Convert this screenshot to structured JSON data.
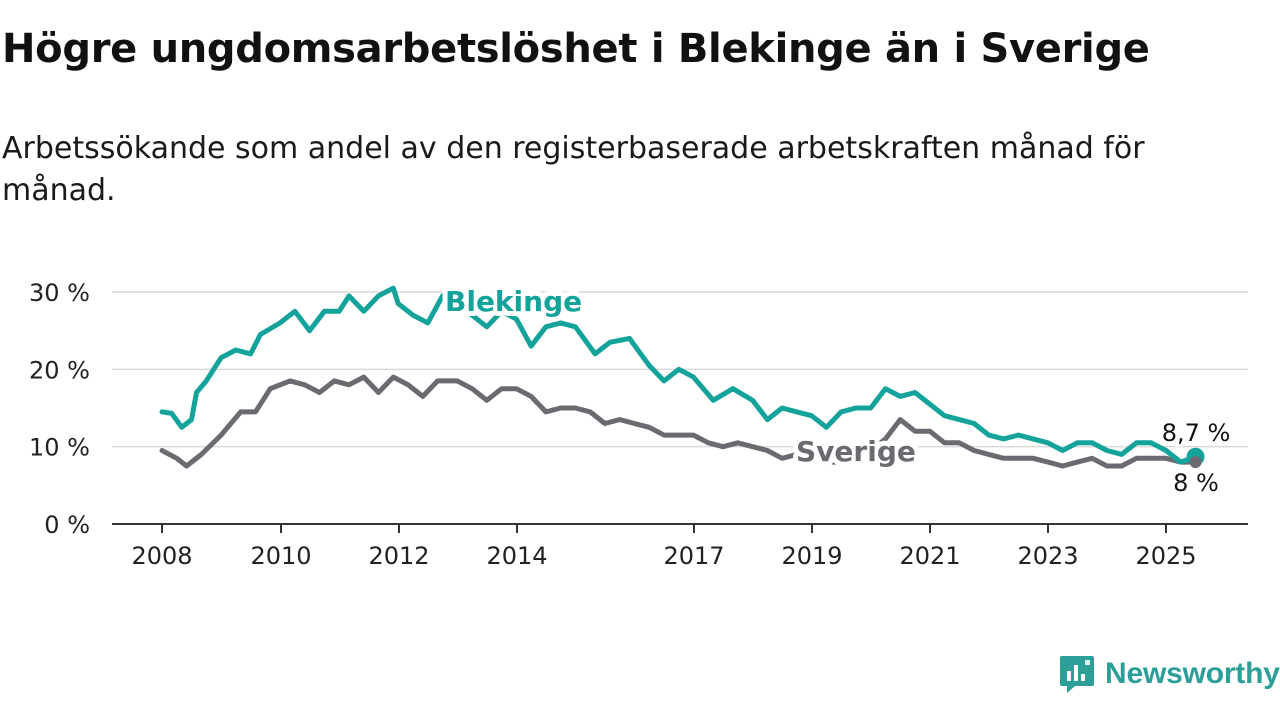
{
  "title": "Högre ungdomsarbetslöshet i Blekinge än i Sverige",
  "subtitle": "Arbetssökande som andel av den registerbaserade arbetskraften månad för månad.",
  "brand": "Newsworthy",
  "colors": {
    "blekinge": "#13a39a",
    "sverige": "#6b6a70",
    "grid": "#d9d9d9",
    "axis": "#333333",
    "brand": "#2e9e98"
  },
  "chart_data": {
    "type": "line",
    "title": "Högre ungdomsarbetslöshet i Blekinge än i Sverige",
    "subtitle": "Arbetssökande som andel av den registerbaserade arbetskraften månad för månad.",
    "x_ticks": [
      "2008",
      "2010",
      "2012",
      "2014",
      "2017",
      "2019",
      "2021",
      "2023",
      "2025"
    ],
    "y_ticks": [
      0,
      10,
      20,
      30
    ],
    "y_tick_labels": [
      "0 %",
      "10 %",
      "20 %",
      "30 %"
    ],
    "xlim": [
      "2008-01",
      "2025-12"
    ],
    "ylim": [
      0,
      32
    ],
    "grid": "horizontal",
    "legend": "inline labels",
    "series": [
      {
        "name": "Blekinge",
        "end_label": "8,7 %",
        "points": [
          [
            "2008-01",
            14.5
          ],
          [
            "2008-03",
            14.3
          ],
          [
            "2008-05",
            12.5
          ],
          [
            "2008-07",
            13.5
          ],
          [
            "2008-08",
            17.0
          ],
          [
            "2008-10",
            18.5
          ],
          [
            "2009-01",
            21.5
          ],
          [
            "2009-04",
            22.5
          ],
          [
            "2009-07",
            22.0
          ],
          [
            "2009-09",
            24.5
          ],
          [
            "2010-01",
            26.0
          ],
          [
            "2010-04",
            27.5
          ],
          [
            "2010-07",
            25.0
          ],
          [
            "2010-10",
            27.5
          ],
          [
            "2011-01",
            27.5
          ],
          [
            "2011-03",
            29.5
          ],
          [
            "2011-06",
            27.5
          ],
          [
            "2011-09",
            29.5
          ],
          [
            "2011-12",
            30.5
          ],
          [
            "2012-01",
            28.5
          ],
          [
            "2012-04",
            27.0
          ],
          [
            "2012-07",
            26.0
          ],
          [
            "2012-10",
            29.5
          ],
          [
            "2013-01",
            28.0
          ],
          [
            "2013-04",
            27.0
          ],
          [
            "2013-07",
            25.5
          ],
          [
            "2013-10",
            27.5
          ],
          [
            "2014-01",
            26.5
          ],
          [
            "2014-04",
            23.0
          ],
          [
            "2014-07",
            25.5
          ],
          [
            "2014-10",
            26.0
          ],
          [
            "2015-01",
            25.5
          ],
          [
            "2015-05",
            22.0
          ],
          [
            "2015-08",
            23.5
          ],
          [
            "2015-12",
            24.0
          ],
          [
            "2016-04",
            20.5
          ],
          [
            "2016-07",
            18.5
          ],
          [
            "2016-10",
            20.0
          ],
          [
            "2017-01",
            19.0
          ],
          [
            "2017-05",
            16.0
          ],
          [
            "2017-09",
            17.5
          ],
          [
            "2018-01",
            16.0
          ],
          [
            "2018-04",
            13.5
          ],
          [
            "2018-07",
            15.0
          ],
          [
            "2018-10",
            14.5
          ],
          [
            "2019-01",
            14.0
          ],
          [
            "2019-04",
            12.5
          ],
          [
            "2019-07",
            14.5
          ],
          [
            "2019-10",
            15.0
          ],
          [
            "2020-01",
            15.0
          ],
          [
            "2020-04",
            17.5
          ],
          [
            "2020-07",
            16.5
          ],
          [
            "2020-10",
            17.0
          ],
          [
            "2021-01",
            15.5
          ],
          [
            "2021-04",
            14.0
          ],
          [
            "2021-07",
            13.5
          ],
          [
            "2021-10",
            13.0
          ],
          [
            "2022-01",
            11.5
          ],
          [
            "2022-04",
            11.0
          ],
          [
            "2022-07",
            11.5
          ],
          [
            "2022-10",
            11.0
          ],
          [
            "2023-01",
            10.5
          ],
          [
            "2023-04",
            9.5
          ],
          [
            "2023-07",
            10.5
          ],
          [
            "2023-10",
            10.5
          ],
          [
            "2024-01",
            9.5
          ],
          [
            "2024-04",
            9.0
          ],
          [
            "2024-07",
            10.5
          ],
          [
            "2024-10",
            10.5
          ],
          [
            "2025-01",
            9.5
          ],
          [
            "2025-04",
            8.0
          ],
          [
            "2025-07",
            8.7
          ]
        ]
      },
      {
        "name": "Sverige",
        "end_label": "8 %",
        "points": [
          [
            "2008-01",
            9.5
          ],
          [
            "2008-04",
            8.5
          ],
          [
            "2008-06",
            7.5
          ],
          [
            "2008-09",
            9.0
          ],
          [
            "2009-01",
            11.5
          ],
          [
            "2009-05",
            14.5
          ],
          [
            "2009-08",
            14.5
          ],
          [
            "2009-11",
            17.5
          ],
          [
            "2010-03",
            18.5
          ],
          [
            "2010-06",
            18.0
          ],
          [
            "2010-09",
            17.0
          ],
          [
            "2010-12",
            18.5
          ],
          [
            "2011-03",
            18.0
          ],
          [
            "2011-06",
            19.0
          ],
          [
            "2011-09",
            17.0
          ],
          [
            "2011-12",
            19.0
          ],
          [
            "2012-03",
            18.0
          ],
          [
            "2012-06",
            16.5
          ],
          [
            "2012-09",
            18.5
          ],
          [
            "2013-01",
            18.5
          ],
          [
            "2013-04",
            17.5
          ],
          [
            "2013-07",
            16.0
          ],
          [
            "2013-10",
            17.5
          ],
          [
            "2014-01",
            17.5
          ],
          [
            "2014-04",
            16.5
          ],
          [
            "2014-07",
            14.5
          ],
          [
            "2014-10",
            15.0
          ],
          [
            "2015-01",
            15.0
          ],
          [
            "2015-04",
            14.5
          ],
          [
            "2015-07",
            13.0
          ],
          [
            "2015-10",
            13.5
          ],
          [
            "2016-01",
            13.0
          ],
          [
            "2016-04",
            12.5
          ],
          [
            "2016-07",
            11.5
          ],
          [
            "2016-10",
            11.5
          ],
          [
            "2017-01",
            11.5
          ],
          [
            "2017-04",
            10.5
          ],
          [
            "2017-07",
            10.0
          ],
          [
            "2017-10",
            10.5
          ],
          [
            "2018-01",
            10.0
          ],
          [
            "2018-04",
            9.5
          ],
          [
            "2018-07",
            8.5
          ],
          [
            "2018-10",
            9.0
          ],
          [
            "2019-01",
            9.0
          ],
          [
            "2019-04",
            8.0
          ],
          [
            "2019-07",
            8.0
          ],
          [
            "2019-10",
            9.0
          ],
          [
            "2020-01",
            9.5
          ],
          [
            "2020-04",
            11.0
          ],
          [
            "2020-07",
            13.5
          ],
          [
            "2020-10",
            12.0
          ],
          [
            "2021-01",
            12.0
          ],
          [
            "2021-04",
            10.5
          ],
          [
            "2021-07",
            10.5
          ],
          [
            "2021-10",
            9.5
          ],
          [
            "2022-01",
            9.0
          ],
          [
            "2022-04",
            8.5
          ],
          [
            "2022-07",
            8.5
          ],
          [
            "2022-10",
            8.5
          ],
          [
            "2023-01",
            8.0
          ],
          [
            "2023-04",
            7.5
          ],
          [
            "2023-07",
            8.0
          ],
          [
            "2023-10",
            8.5
          ],
          [
            "2024-01",
            7.5
          ],
          [
            "2024-04",
            7.5
          ],
          [
            "2024-07",
            8.5
          ],
          [
            "2024-10",
            8.5
          ],
          [
            "2025-01",
            8.5
          ],
          [
            "2025-04",
            8.0
          ],
          [
            "2025-07",
            8.0
          ]
        ]
      }
    ]
  }
}
